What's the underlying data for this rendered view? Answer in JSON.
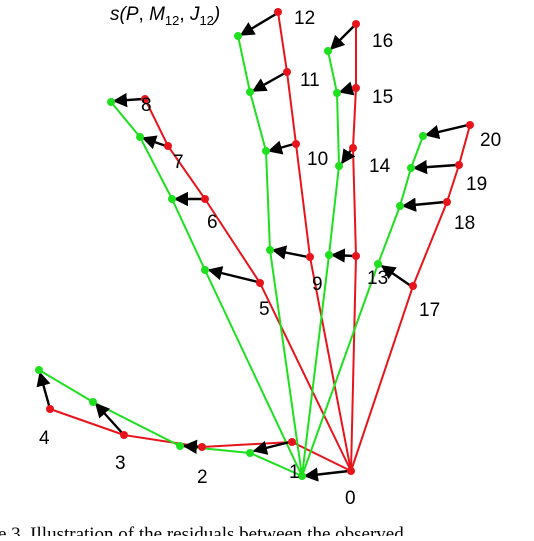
{
  "figure": {
    "annotation": {
      "func": "s(",
      "arg1": "P",
      "sep1": ", ",
      "arg2_main": "M",
      "arg2_sub": "12",
      "sep2": ", ",
      "arg3_main": "J",
      "arg3_sub": "12",
      "close": ")"
    },
    "caption_fragment": "e 3. Illustration of the residuals between the observed",
    "colors": {
      "observed": "#e8141c",
      "model": "#1fe01f",
      "residual_arrow": "#000000"
    },
    "joint_labels": [
      "0",
      "1",
      "2",
      "3",
      "4",
      "5",
      "6",
      "7",
      "8",
      "9",
      "10",
      "11",
      "12",
      "13",
      "14",
      "15",
      "16",
      "17",
      "18",
      "19",
      "20"
    ]
  }
}
